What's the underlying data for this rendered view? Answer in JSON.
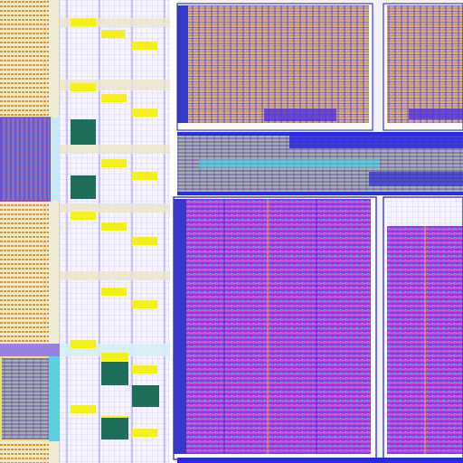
{
  "view": {
    "kind": "ic-layout-viewer",
    "background": "#f2f2f6"
  },
  "palette": {
    "metal_blue": "#2a2ae0",
    "metal_purple": "#6b2fd8",
    "metal_magenta": "#d23cd2",
    "pad_yellow": "#f2f21a",
    "cell_teal": "#1e6e5a",
    "cell_orange": "#c89a4a",
    "diffusion_cyan": "#40d8e8",
    "grid_lilac": "#b9a8f0",
    "outline_indigo": "#3838c8",
    "bus_stripe_beige": "#ece6c8"
  },
  "regions": [
    {
      "name": "io-cell-column",
      "fill": "striped-orange"
    },
    {
      "name": "standard-cell-rows",
      "fill": "lilac-grid"
    },
    {
      "name": "macro-block-top-left",
      "fill": "orange-dense"
    },
    {
      "name": "macro-block-top-right",
      "fill": "orange-dense"
    },
    {
      "name": "routing-channel",
      "fill": "bus-mixed"
    },
    {
      "name": "macro-block-bottom-left",
      "fill": "magenta-dense"
    },
    {
      "name": "macro-block-bottom-right",
      "fill": "magenta-dense"
    }
  ]
}
